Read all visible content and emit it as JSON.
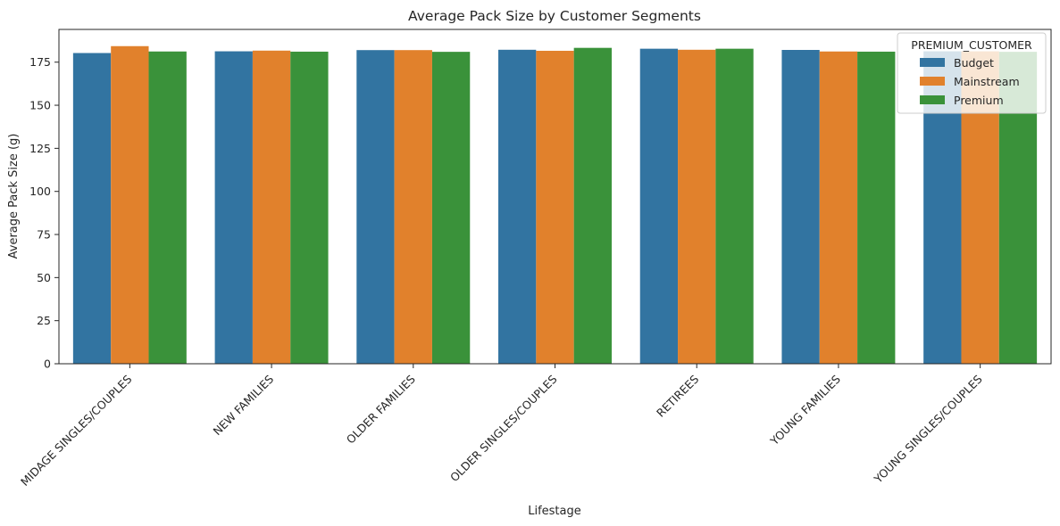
{
  "chart_data": {
    "type": "bar",
    "title": "Average Pack Size by Customer Segments",
    "xlabel": "Lifestage",
    "ylabel": "Average Pack Size (g)",
    "categories": [
      "MIDAGE SINGLES/COUPLES",
      "NEW FAMILIES",
      "OLDER FAMILIES",
      "OLDER SINGLES/COUPLES",
      "RETIREES",
      "YOUNG FAMILIES",
      "YOUNG SINGLES/COUPLES"
    ],
    "series": [
      {
        "name": "Budget",
        "color": "#3274a1",
        "values": [
          180.3,
          181.3,
          182.0,
          182.2,
          182.8,
          182.1,
          181.3
        ]
      },
      {
        "name": "Mainstream",
        "color": "#e1812c",
        "values": [
          184.3,
          181.7,
          182.0,
          181.6,
          182.2,
          181.2,
          181.3
        ]
      },
      {
        "name": "Premium",
        "color": "#3a923a",
        "values": [
          181.2,
          181.1,
          181.0,
          183.3,
          182.8,
          181.1,
          181.0
        ]
      }
    ],
    "ylim": [
      0,
      194
    ],
    "yticks": [
      0,
      25,
      50,
      75,
      100,
      125,
      150,
      175
    ],
    "legend": {
      "title": "PREMIUM_CUSTOMER",
      "placement": "top-right"
    },
    "grid": false
  }
}
